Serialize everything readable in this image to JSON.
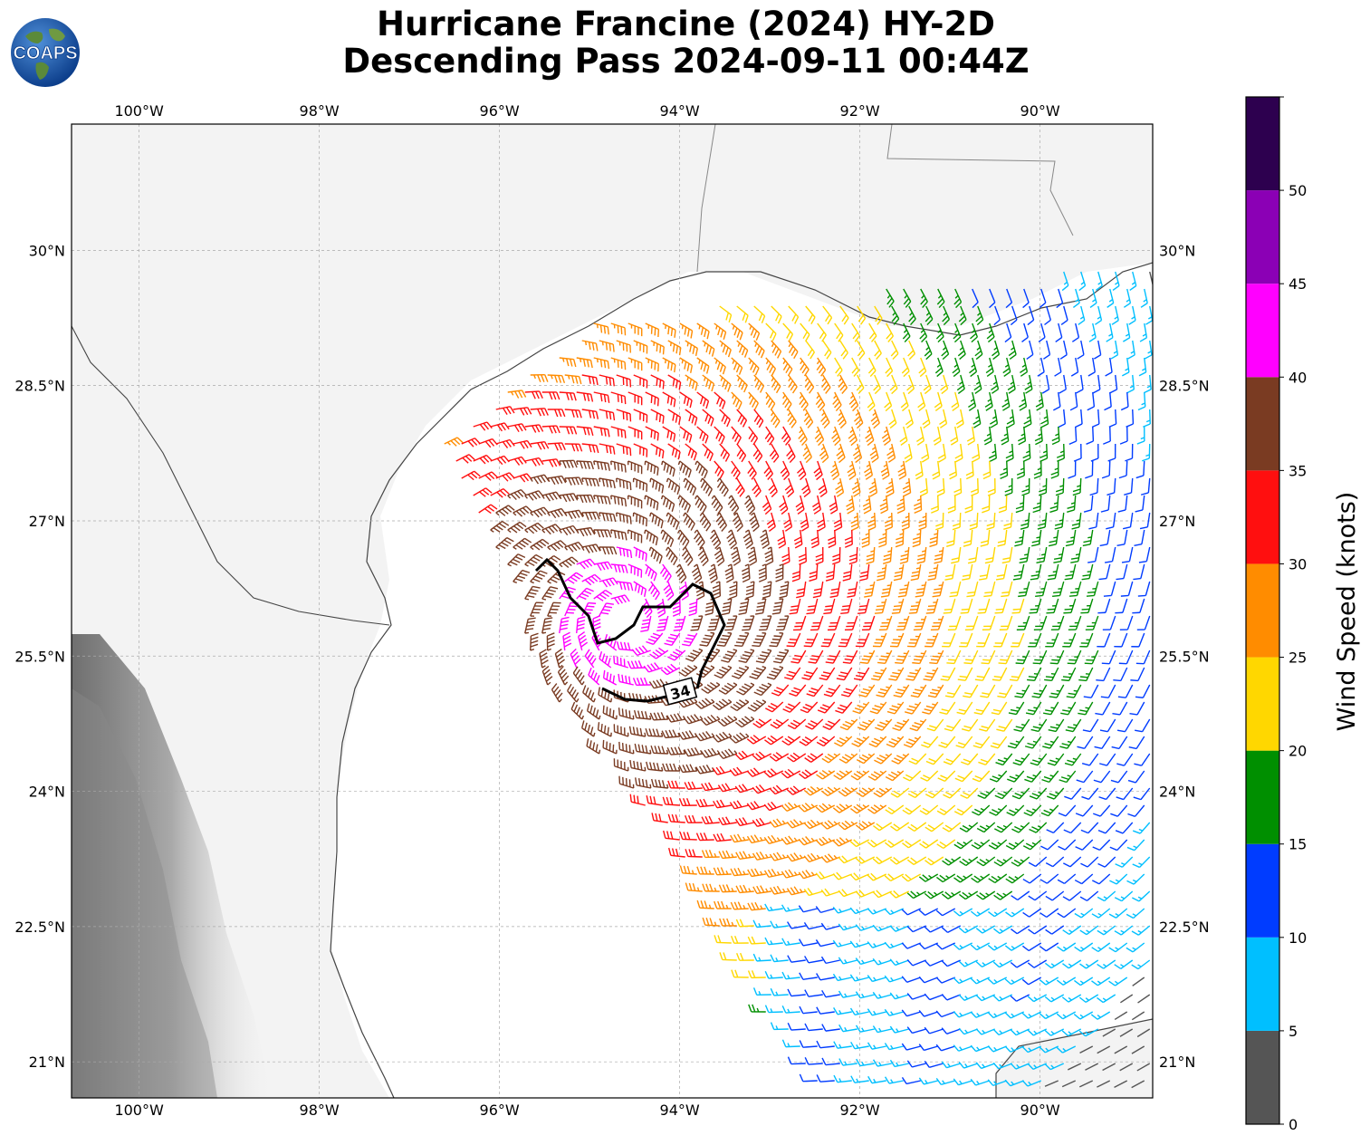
{
  "title": {
    "line1": "Hurricane Francine (2024) HY-2D",
    "line2": "Descending Pass 2024-09-11 00:44Z"
  },
  "logo": {
    "text": "COAPS",
    "icon": "globe-logo-icon"
  },
  "map": {
    "lon_range": [
      -100.75,
      -88.75
    ],
    "lat_range": [
      20.6,
      31.4
    ],
    "lon_ticks": [
      "100°W",
      "98°W",
      "96°W",
      "94°W",
      "92°W",
      "90°W"
    ],
    "lat_ticks": [
      "30°N",
      "28.5°N",
      "27°N",
      "25.5°N",
      "24°N",
      "22.5°N",
      "21°N"
    ],
    "gridlines": true,
    "gale_contour_label": "34"
  },
  "colorbar": {
    "label": "Wind Speed (knots)",
    "ticks": [
      "0",
      "5",
      "10",
      "15",
      "20",
      "25",
      "30",
      "35",
      "40",
      "45",
      "50"
    ],
    "bins": [
      {
        "min": 0,
        "max": 5,
        "color": "#555555"
      },
      {
        "min": 5,
        "max": 10,
        "color": "#00bfff"
      },
      {
        "min": 10,
        "max": 15,
        "color": "#003cff"
      },
      {
        "min": 15,
        "max": 20,
        "color": "#008f00"
      },
      {
        "min": 20,
        "max": 25,
        "color": "#ffd700"
      },
      {
        "min": 25,
        "max": 30,
        "color": "#ff8c00"
      },
      {
        "min": 30,
        "max": 35,
        "color": "#ff0f0f"
      },
      {
        "min": 35,
        "max": 40,
        "color": "#7a3b22"
      },
      {
        "min": 40,
        "max": 45,
        "color": "#ff00ff"
      },
      {
        "min": 45,
        "max": 50,
        "color": "#8b00b5"
      },
      {
        "min": 50,
        "max": 55,
        "color": "#2d004f"
      }
    ]
  },
  "storm_center": {
    "lon": -94.6,
    "lat": 25.9
  }
}
